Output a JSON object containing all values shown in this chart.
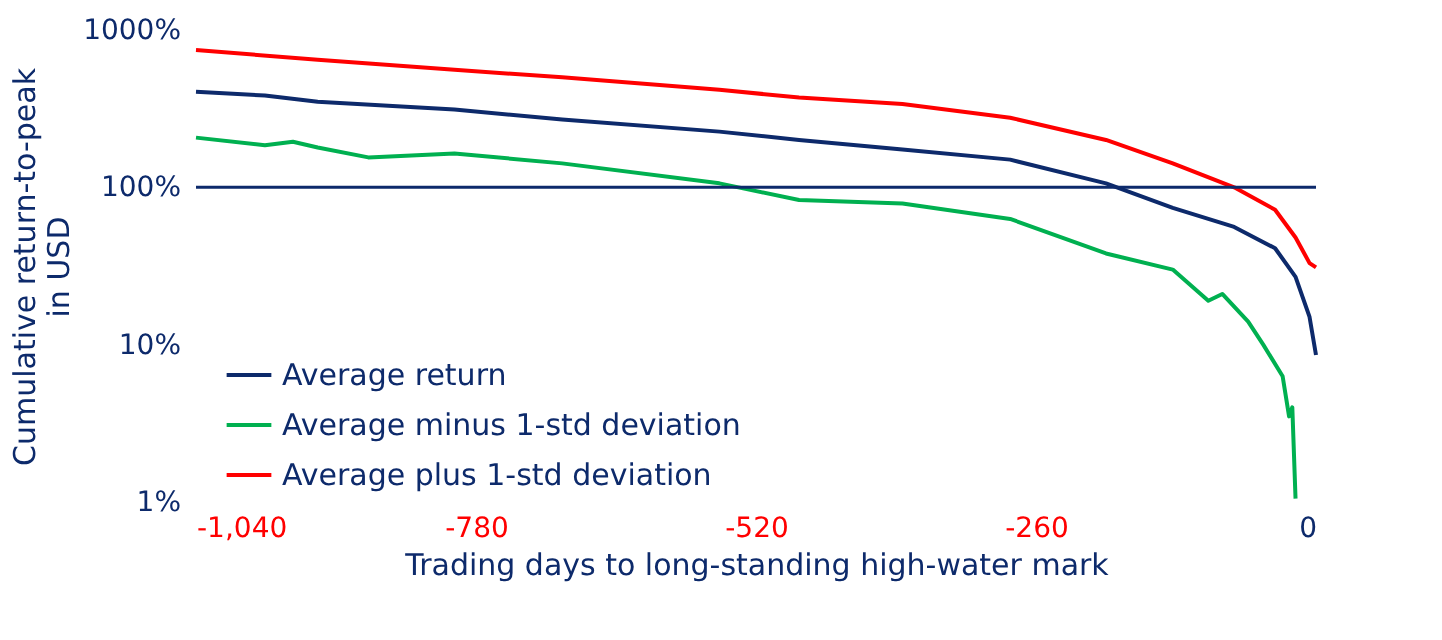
{
  "chart_data": {
    "type": "line",
    "xlabel": "Trading days to long-standing high-water mark",
    "ylabel": "Cumulative return-to-peak in USD",
    "series": [
      {
        "name": "Average return",
        "color": "#0d2a6b",
        "x": [
          -1040,
          -976,
          -927,
          -800,
          -700,
          -554,
          -480,
          -384,
          -284,
          -195,
          -133,
          -76,
          -38,
          -19,
          -6,
          0
        ],
        "values": [
          405,
          383,
          350,
          312,
          270,
          226,
          200,
          174,
          150,
          106,
          74,
          56,
          41,
          27,
          15,
          8.6
        ]
      },
      {
        "name": "Average minus 1-std deviation",
        "color": "#00b050",
        "x": [
          -1040,
          -976,
          -950,
          -927,
          -880,
          -800,
          -700,
          -554,
          -480,
          -384,
          -284,
          -195,
          -133,
          -100,
          -87,
          -63,
          -49,
          -31,
          -25,
          -22,
          -19
        ],
        "values": [
          207,
          185,
          195,
          179,
          155,
          164,
          142,
          106,
          83,
          79,
          63,
          38,
          30,
          19,
          21,
          14,
          10,
          6.3,
          3.5,
          4,
          1.05
        ]
      },
      {
        "name": "Average plus 1-std deviation",
        "color": "#ff0000",
        "x": [
          -1040,
          -927,
          -800,
          -700,
          -554,
          -480,
          -384,
          -284,
          -195,
          -133,
          -76,
          -38,
          -19,
          -6,
          0
        ],
        "values": [
          747,
          646,
          559,
          500,
          417,
          372,
          339,
          277,
          200,
          142,
          100,
          72,
          48,
          33,
          31
        ]
      }
    ],
    "log": "y",
    "xlim": [
      -1040,
      0
    ],
    "ylim": [
      1,
      1000
    ],
    "xticks": [
      {
        "value": -1040,
        "label": "-1,040"
      },
      -780,
      -520,
      -260,
      0
    ],
    "yticks": [
      {
        "value": 1,
        "label": "1%"
      },
      {
        "value": 10,
        "label": "10%"
      },
      {
        "value": 100,
        "label": "100%"
      },
      {
        "value": 1000,
        "label": "1000%"
      }
    ],
    "ref_lines": [
      {
        "axis": "y",
        "value": 100,
        "color": "#0d2a6b"
      }
    ],
    "grid": false,
    "legend": "bottom left",
    "line_style": "solid"
  }
}
